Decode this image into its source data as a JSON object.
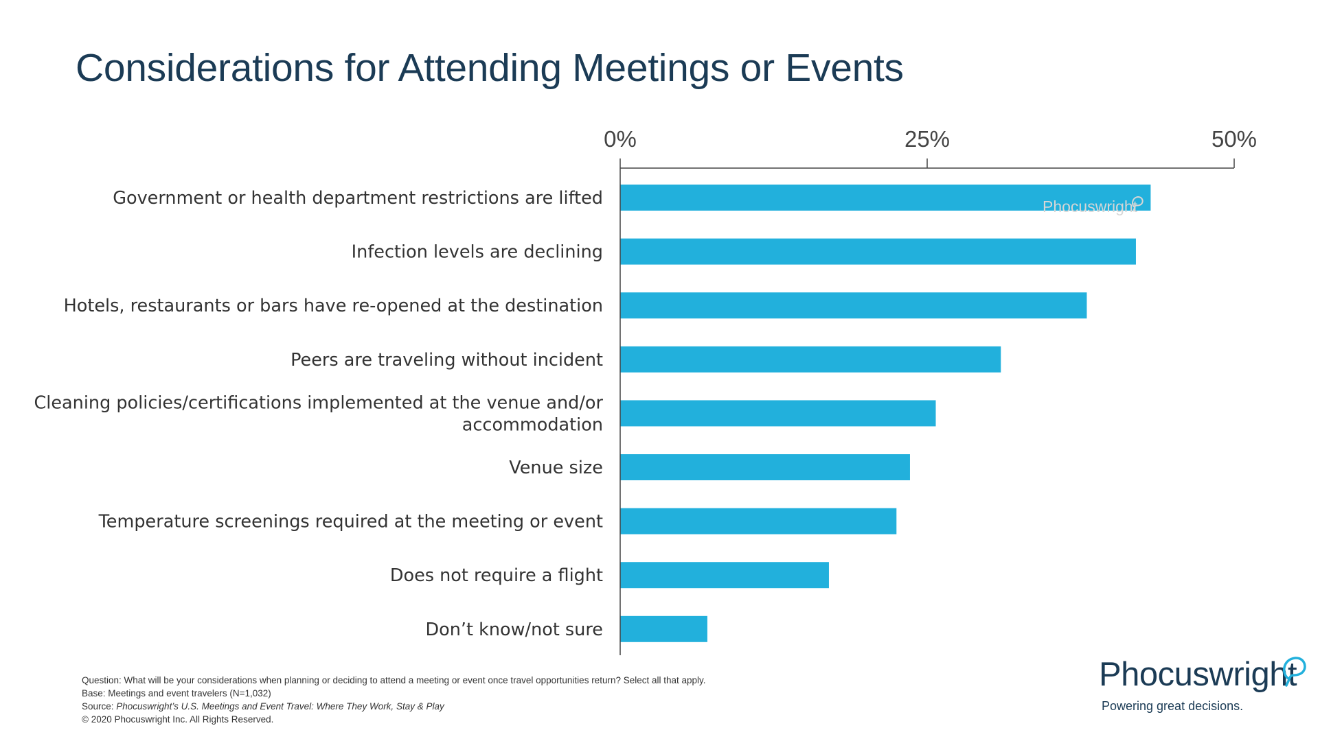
{
  "title": "Considerations for Attending Meetings or Events",
  "chart_data": {
    "type": "bar",
    "orientation": "horizontal",
    "title": "Considerations for Attending Meetings or Events",
    "categories": [
      "Government or health department restrictions are lifted",
      "Infection levels are declining",
      "Hotels, restaurants or bars have re-opened at the destination",
      "Peers are traveling without incident",
      "Cleaning policies/certifications implemented at the venue and/or accommodation",
      "Venue size",
      "Temperature screenings required at the meeting or event",
      "Does not require a flight",
      "Don’t know/not sure"
    ],
    "category_lines": [
      [
        "Government or health department restrictions are lifted"
      ],
      [
        "Infection levels are declining"
      ],
      [
        "Hotels, restaurants or bars have re-opened at the destination"
      ],
      [
        "Peers are traveling without incident"
      ],
      [
        "Cleaning policies/certifications implemented at the venue and/or",
        "accommodation"
      ],
      [
        "Venue size"
      ],
      [
        "Temperature screenings required at the meeting or event"
      ],
      [
        "Does not require a flight"
      ],
      [
        "Don’t know/not sure"
      ]
    ],
    "values": [
      43.2,
      42,
      38,
      31,
      25.7,
      23.6,
      22.5,
      17,
      7.1
    ],
    "xlim": [
      0,
      50
    ],
    "xticks": [
      0,
      25,
      50
    ],
    "xtick_labels": [
      "0%",
      "25%",
      "50%"
    ],
    "axis_position": "top",
    "bar_color": "#22b0dc",
    "grid": false,
    "xlabel": "",
    "ylabel": ""
  },
  "watermark": "Phocuswright",
  "footnotes": {
    "question": "Question: What will be your considerations when planning or deciding to attend a meeting or event once travel opportunities return? Select all that apply.",
    "base": "Base: Meetings and event travelers (N=1,032)",
    "source_prefix": "Source: ",
    "source_title": "Phocuswright’s U.S. Meetings and Event Travel: Where They Work, Stay & Play",
    "copyright": "© 2020  Phocuswright Inc. All Rights Reserved."
  },
  "logo": {
    "name": "Phocuswright",
    "tagline": "Powering great decisions."
  },
  "colors": {
    "title": "#1b3b55",
    "bar": "#22b0dc",
    "axis": "#444444",
    "label": "#333333",
    "logo_bubble": "#22b0dc"
  }
}
